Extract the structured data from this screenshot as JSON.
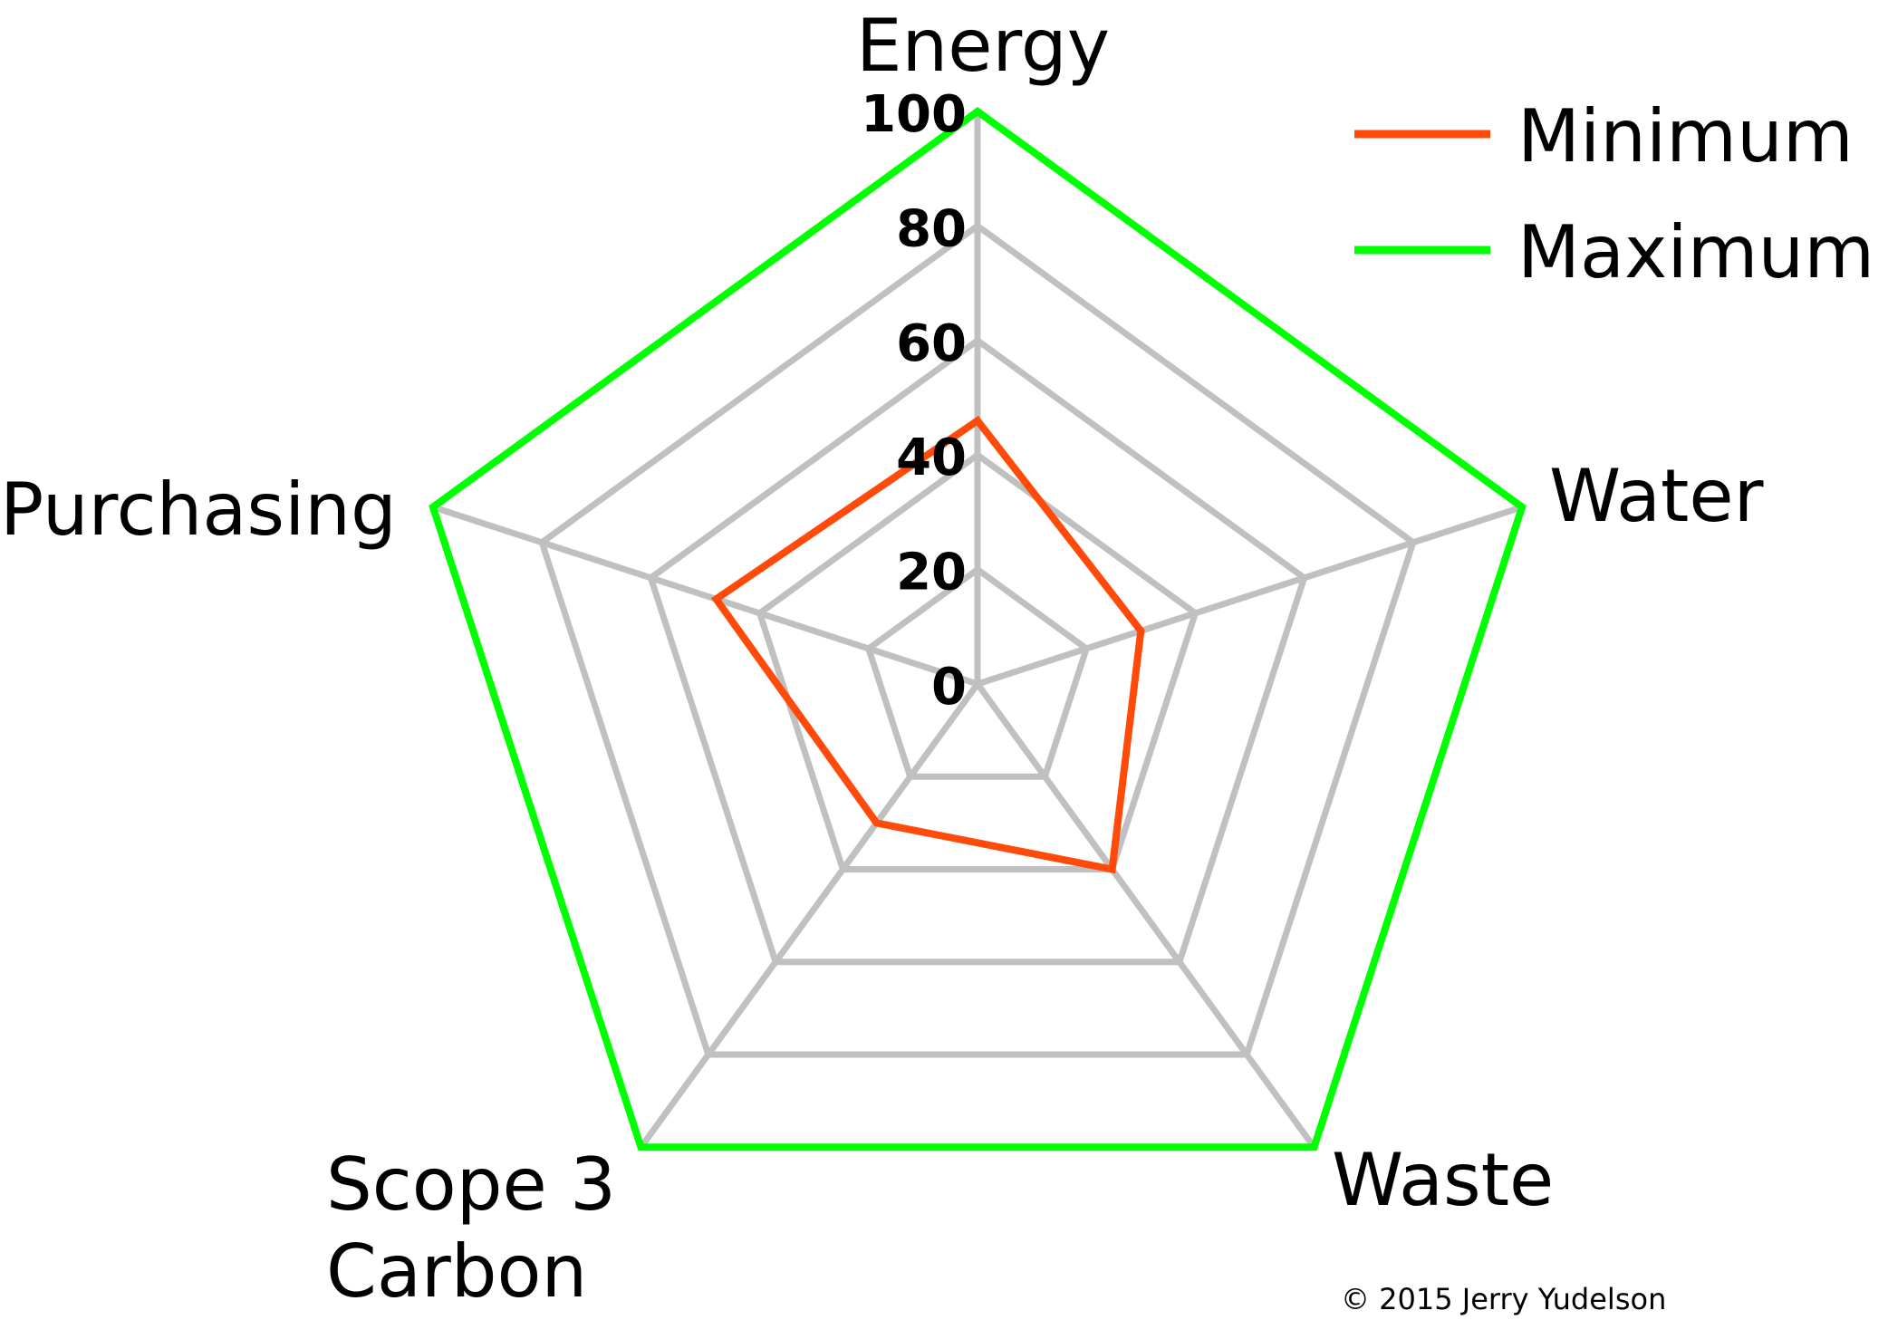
{
  "chart_data": {
    "type": "radar",
    "axes": [
      "Energy",
      "Water",
      "Waste",
      "Scope 3\nCarbon",
      "Purchasing"
    ],
    "rlim": [
      0,
      100
    ],
    "ticks": [
      "0",
      "20",
      "40",
      "60",
      "80",
      "100"
    ],
    "tick_values": [
      0,
      20,
      40,
      60,
      80,
      100
    ],
    "series": [
      {
        "name": "Minimum",
        "color": "#ff4a0a",
        "values": [
          46,
          30,
          40,
          30,
          48
        ]
      },
      {
        "name": "Maximum",
        "color": "#00ff00",
        "values": [
          100,
          100,
          100,
          100,
          100
        ]
      }
    ],
    "grid": true,
    "grid_color": "#c0c0c0",
    "legend": "top-right"
  },
  "copyright": "© 2015 Jerry Yudelson"
}
